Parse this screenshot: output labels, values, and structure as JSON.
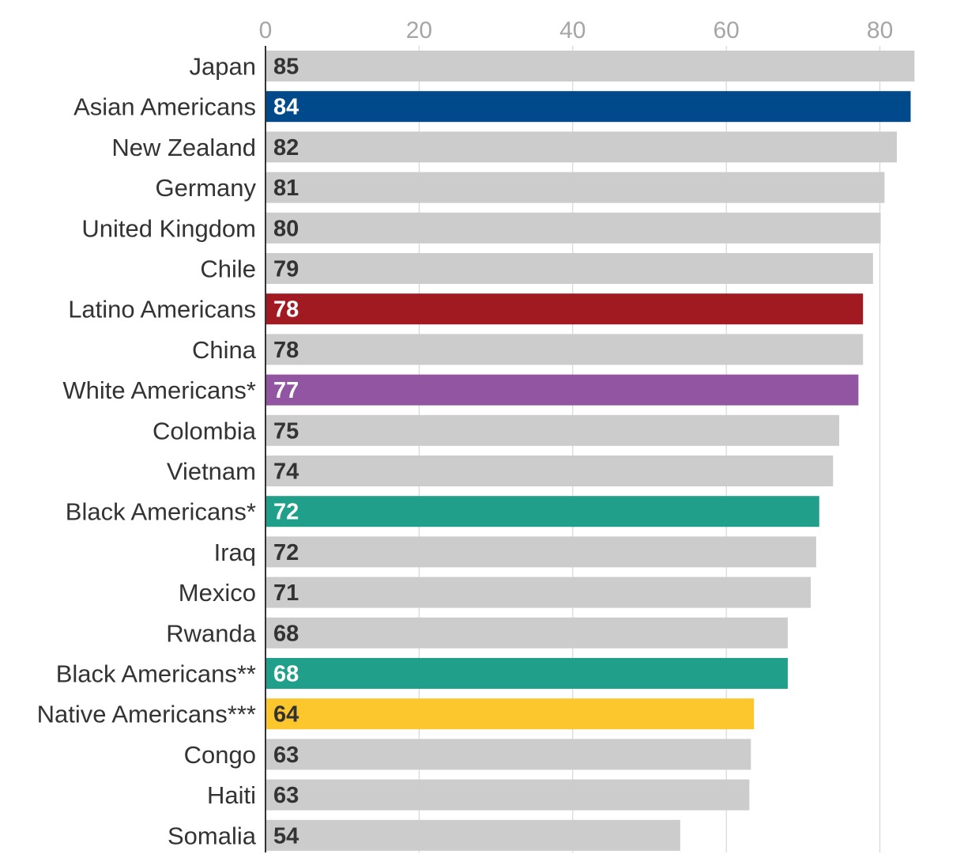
{
  "chart_data": {
    "type": "bar",
    "orientation": "horizontal",
    "title": "",
    "xlabel": "",
    "ylabel": "",
    "xlim": [
      0,
      85
    ],
    "x_ticks": [
      0,
      20,
      40,
      60,
      80
    ],
    "x_axis_position": "top",
    "grid": true,
    "default_color": "#cccccc",
    "categories": [
      "Japan",
      "Asian Americans",
      "New Zealand",
      "Germany",
      "United Kingdom",
      "Chile",
      "Latino Americans",
      "China",
      "White Americans*",
      "Colombia",
      "Vietnam",
      "Black Americans*",
      "Iraq",
      "Mexico",
      "Rwanda",
      "Black Americans**",
      "Native Americans***",
      "Congo",
      "Haiti",
      "Somalia"
    ],
    "values": [
      84.5,
      84.0,
      82.2,
      80.6,
      80.1,
      79.1,
      77.8,
      77.8,
      77.2,
      74.7,
      73.9,
      72.1,
      71.7,
      71.0,
      68.0,
      68.0,
      63.6,
      63.2,
      63.0,
      54.0
    ],
    "value_labels": [
      "85",
      "84",
      "82",
      "81",
      "80",
      "79",
      "78",
      "78",
      "77",
      "75",
      "74",
      "72",
      "72",
      "71",
      "68",
      "68",
      "64",
      "63",
      "63",
      "54"
    ],
    "colors": [
      "#cccccc",
      "#004a8c",
      "#cccccc",
      "#cccccc",
      "#cccccc",
      "#cccccc",
      "#a11a22",
      "#cccccc",
      "#9255a1",
      "#cccccc",
      "#cccccc",
      "#20a08a",
      "#cccccc",
      "#cccccc",
      "#cccccc",
      "#20a08a",
      "#fcc72c",
      "#cccccc",
      "#cccccc",
      "#cccccc"
    ],
    "label_colors": [
      "#333333",
      "#ffffff",
      "#333333",
      "#333333",
      "#333333",
      "#333333",
      "#ffffff",
      "#333333",
      "#ffffff",
      "#333333",
      "#333333",
      "#ffffff",
      "#333333",
      "#333333",
      "#333333",
      "#ffffff",
      "#333333",
      "#333333",
      "#333333",
      "#333333"
    ]
  }
}
